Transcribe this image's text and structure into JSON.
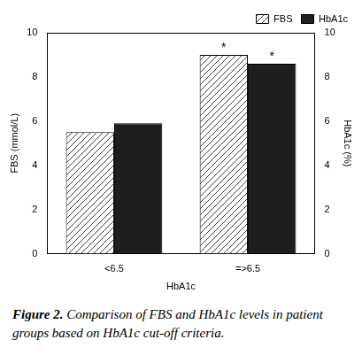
{
  "chart_data": {
    "type": "bar",
    "categories": [
      "<6.5",
      "=>6.5"
    ],
    "x_label": "HbA1c",
    "y_label": "FBS (mmol/L)",
    "y2_label": "HbA1c (%)",
    "series": [
      {
        "name": "FBS",
        "color": "#3a3a3a",
        "values": [
          5.5,
          9.0
        ]
      },
      {
        "name": "HbA1c",
        "color": "#1e1e1e",
        "values": [
          5.9,
          8.6
        ],
        "axis": "y2"
      }
    ],
    "ylim": [
      0,
      10
    ],
    "yticks": [
      0,
      2,
      4,
      6,
      8,
      10
    ],
    "y2lim": [
      0,
      10
    ],
    "y2ticks": [
      0,
      2,
      4,
      6,
      8,
      10
    ],
    "grid": false,
    "legend": "top-right",
    "annotations": [
      {
        "text": "*",
        "category": "=>6.5",
        "series": "FBS"
      },
      {
        "text": "*",
        "category": "=>6.5",
        "series": "HbA1c"
      }
    ],
    "caption_label": "Figure 2.",
    "caption": "Comparison of FBS and HbA1c levels in patient groups based on HbA1c cut-off criteria."
  }
}
